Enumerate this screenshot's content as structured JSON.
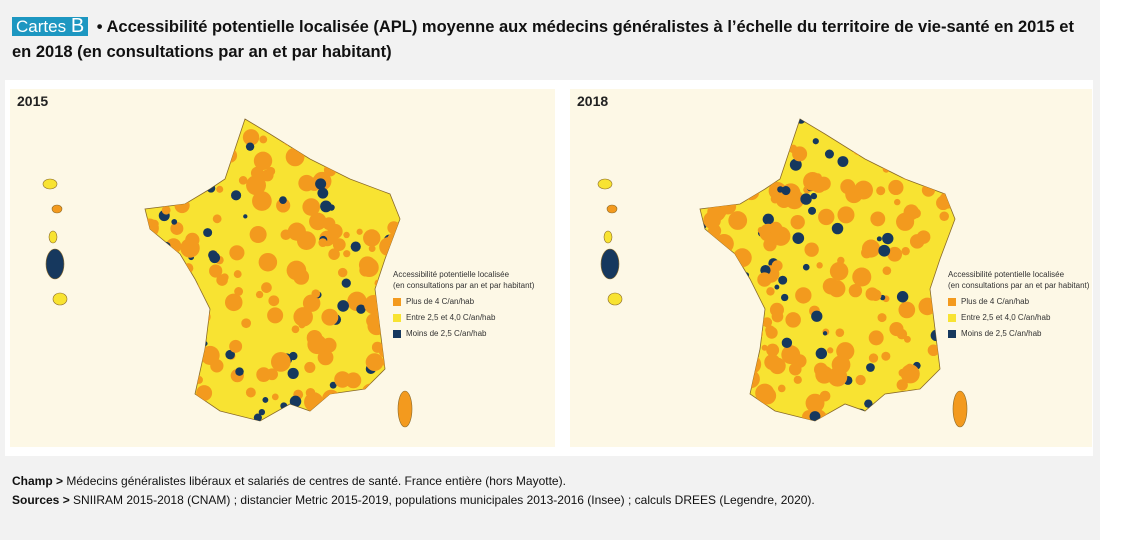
{
  "figure": {
    "tag_prefix": "Cartes",
    "tag_letter": "B",
    "title": "• Accessibilité potentielle localisée (APL) moyenne aux médecins généralistes à l’échelle du territoire de vie-santé en 2015 et en 2018 (en consultations par an et par habitant)"
  },
  "maps": [
    {
      "year": "2015"
    },
    {
      "year": "2018"
    }
  ],
  "legend": {
    "title_line1": "Accessibilité potentielle localisée",
    "title_line2": "(en consultations par an et par habitant)",
    "items": [
      {
        "label": "Plus de 4 C/an/hab",
        "color": "#f39a1e"
      },
      {
        "label": "Entre 2,5 et 4,0 C/an/hab",
        "color": "#f8e332"
      },
      {
        "label": "Moins de 2,5 C/an/hab",
        "color": "#16385e"
      }
    ]
  },
  "footer": {
    "champ_label": "Champ >",
    "champ_text": " Médecins généralistes libéraux et salariés de centres de santé. France entière (hors Mayotte).",
    "sources_label": "Sources >",
    "sources_text": " SNIIRAM 2015-2018 (CNAM) ; distancier Metric 2015-2019, populations municipales 2013-2016 (Insee) ; calculs DREES (Legendre, 2020)."
  }
}
